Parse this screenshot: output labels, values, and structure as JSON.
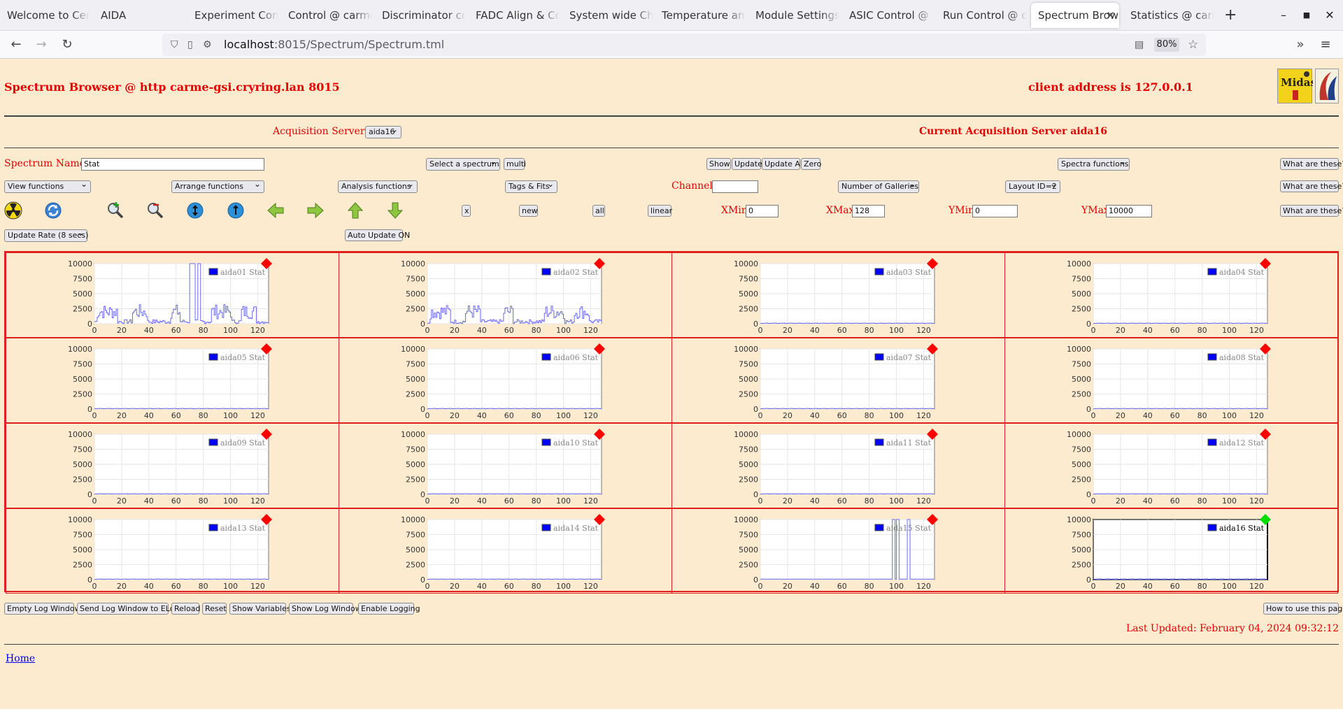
{
  "browser": {
    "tabs": [
      {
        "label": "Welcome to Cen"
      },
      {
        "label": "AIDA"
      },
      {
        "label": "Experiment Contr"
      },
      {
        "label": "Control @ carme"
      },
      {
        "label": "Discriminator co"
      },
      {
        "label": "FADC Align & Co"
      },
      {
        "label": "System wide Che"
      },
      {
        "label": "Temperature and"
      },
      {
        "label": "Module Settings S"
      },
      {
        "label": "ASIC Control @ c"
      },
      {
        "label": "Run Control @ ca"
      },
      {
        "label": "Spectrum Brow"
      },
      {
        "label": "Statistics @ carm"
      }
    ],
    "url_host": "localhost",
    "url_rest": ":8015/Spectrum/Spectrum.tml",
    "zoom": "80%"
  },
  "header": {
    "title": "Spectrum Browser @ http carme-gsi.cryring.lan 8015",
    "client_address": "client address is 127.0.0.1"
  },
  "acquisition": {
    "label": "Acquisition Servers",
    "selected": "aida16",
    "current": "Current Acquisition Server aida16"
  },
  "controls": {
    "spectrum_name_label": "Spectrum Name:",
    "spectrum_name_value": "Stat",
    "select_spectrum": "Select a spectrum",
    "multi": "multi",
    "show": "Show",
    "update": "Update",
    "update_all": "Update All",
    "zero": "Zero",
    "spectra_functions": "Spectra functions",
    "what": "What are these?",
    "view_functions": "View functions",
    "arrange_functions": "Arrange functions",
    "analysis_functions": "Analysis functions",
    "tags_fits": "Tags & Fits",
    "channel_label": "Channel:",
    "channel_value": "",
    "galleries": "Number of Galleries",
    "layout": "Layout ID=2",
    "x_btn": "x",
    "new_btn": "new",
    "all_btn": "all",
    "linear_btn": "linear",
    "xmin_label": "XMin",
    "xmin_value": "0",
    "xmax_label": "XMax",
    "xmax_value": "128",
    "ymin_label": "YMin",
    "ymin_value": "0",
    "ymax_label": "YMax",
    "ymax_value": "10000",
    "update_rate": "Update Rate (8 secs)",
    "auto_update": "Auto Update ON"
  },
  "icons": [
    "radiation-icon",
    "refresh-icon",
    "zoom-in-icon",
    "zoom-out-icon",
    "expand-y-icon",
    "expand-x-icon",
    "arrow-left-icon",
    "arrow-right-icon",
    "arrow-up-icon",
    "arrow-down-icon"
  ],
  "colors": {
    "alert": "#ff0000",
    "ok": "#00dd00",
    "series": "#0000ff"
  },
  "chart_data": [
    {
      "type": "line",
      "series": [
        {
          "name": "aida01 Stat",
          "shape": "active",
          "segments": [
            [
              0,
              128,
              "low"
            ],
            [
              72,
              73,
              "spike"
            ],
            [
              76,
              77,
              "spike"
            ]
          ]
        }
      ],
      "status": "red"
    },
    {
      "type": "line",
      "series": [
        {
          "name": "aida02 Stat",
          "shape": "active"
        }
      ],
      "status": "red"
    },
    {
      "type": "line",
      "series": [
        {
          "name": "aida03 Stat",
          "shape": "flat"
        }
      ],
      "status": "red"
    },
    {
      "type": "line",
      "series": [
        {
          "name": "aida04 Stat",
          "shape": "flat"
        }
      ],
      "status": "red"
    },
    {
      "type": "line",
      "series": [
        {
          "name": "aida05 Stat",
          "shape": "flat"
        }
      ],
      "status": "red"
    },
    {
      "type": "line",
      "series": [
        {
          "name": "aida06 Stat",
          "shape": "flat"
        }
      ],
      "status": "red"
    },
    {
      "type": "line",
      "series": [
        {
          "name": "aida07 Stat",
          "shape": "flat"
        }
      ],
      "status": "red"
    },
    {
      "type": "line",
      "series": [
        {
          "name": "aida08 Stat",
          "shape": "flat"
        }
      ],
      "status": "red"
    },
    {
      "type": "line",
      "series": [
        {
          "name": "aida09 Stat",
          "shape": "flat"
        }
      ],
      "status": "red"
    },
    {
      "type": "line",
      "series": [
        {
          "name": "aida10 Stat",
          "shape": "flat"
        }
      ],
      "status": "red"
    },
    {
      "type": "line",
      "series": [
        {
          "name": "aida11 Stat",
          "shape": "flat"
        }
      ],
      "status": "red"
    },
    {
      "type": "line",
      "series": [
        {
          "name": "aida12 Stat",
          "shape": "flat"
        }
      ],
      "status": "red"
    },
    {
      "type": "line",
      "series": [
        {
          "name": "aida13 Stat",
          "shape": "flat"
        }
      ],
      "status": "red"
    },
    {
      "type": "line",
      "series": [
        {
          "name": "aida14 Stat",
          "shape": "flat"
        }
      ],
      "status": "red"
    },
    {
      "type": "line",
      "series": [
        {
          "name": "aida15 Stat",
          "shape": "spikes",
          "spikes": [
            97,
            100,
            108
          ]
        }
      ],
      "status": "red"
    },
    {
      "type": "line",
      "series": [
        {
          "name": "aida16 Stat",
          "shape": "flat"
        }
      ],
      "status": "green"
    }
  ],
  "chart_axes": {
    "xticks": [
      0,
      20,
      40,
      60,
      80,
      100,
      120
    ],
    "yticks": [
      0,
      2500,
      5000,
      7500,
      10000
    ],
    "xlim": [
      0,
      128
    ],
    "ylim": [
      0,
      10000
    ]
  },
  "footer": {
    "empty_log": "Empty Log Window",
    "send_log": "Send Log Window to ELog",
    "reload": "Reload",
    "reset": "Reset",
    "show_vars": "Show Variables",
    "show_log": "Show Log Window",
    "enable_logging": "Enable Logging",
    "how_to": "How to use this page",
    "last_updated": "Last Updated: February 04, 2024 09:32:12",
    "home": "Home"
  }
}
